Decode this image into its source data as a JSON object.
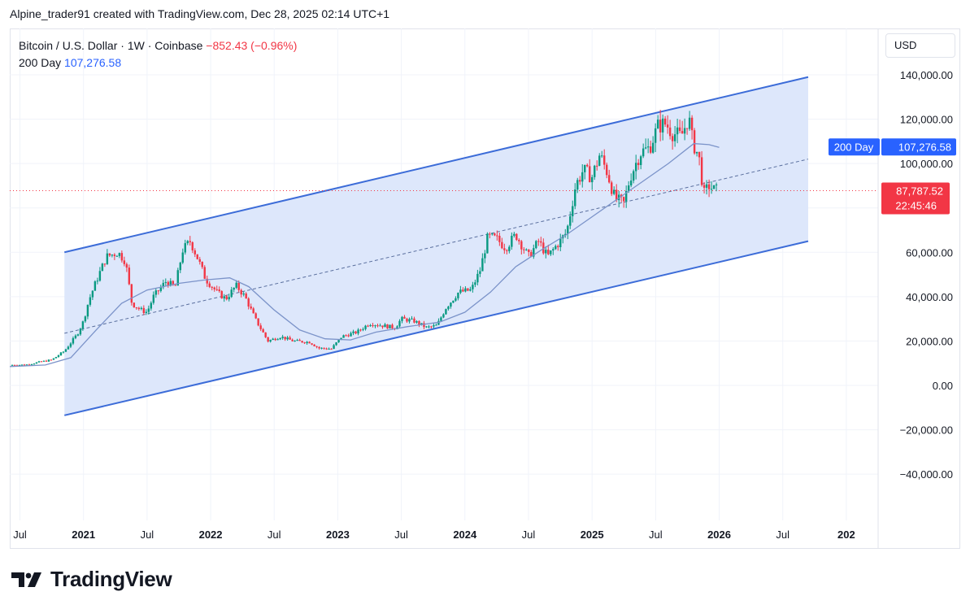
{
  "header": {
    "caption": "Alpine_trader91 created with TradingView.com, Dec 28, 2025 02:14 UTC+1"
  },
  "legend": {
    "symbol": "Bitcoin / U.S. Dollar · 1W · Coinbase",
    "change": "−852.43 (−0.96%)",
    "ma_label": "200 Day",
    "ma_value": "107,276.58"
  },
  "currency_button": "USD",
  "price_tags": {
    "ma_name": "200 Day",
    "ma_value": "107,276.58",
    "last_price": "87,787.52",
    "countdown": "22:45:46"
  },
  "footer": {
    "brand": "TradingView"
  },
  "colors": {
    "up": "#089981",
    "down": "#f23645",
    "ma": "#7b93c9",
    "channel": "#3c6cd8",
    "channel_fill": "#dbe6fb",
    "tag_blue": "#2962ff",
    "tag_red": "#f23645"
  },
  "chart_data": {
    "type": "candlestick",
    "title": "Bitcoin / U.S. Dollar · 1W · Coinbase",
    "x_ticks": [
      "Jul",
      "2021",
      "Jul",
      "2022",
      "Jul",
      "2023",
      "Jul",
      "2024",
      "Jul",
      "2025",
      "Jul",
      "2026",
      "Jul",
      "202"
    ],
    "x_tick_years": [
      2020.5,
      2021.0,
      2021.5,
      2022.0,
      2022.5,
      2023.0,
      2023.5,
      2024.0,
      2024.5,
      2025.0,
      2025.5,
      2026.0,
      2026.5,
      2027.0
    ],
    "x_range": [
      2020.42,
      2027.25
    ],
    "y_ticks": [
      140000,
      120000,
      100000,
      60000,
      40000,
      20000,
      0,
      -20000,
      -40000
    ],
    "y_tick_labels": [
      "140,000.00",
      "120,000.00",
      "100,000.00",
      "60,000.00",
      "40,000.00",
      "20,000.00",
      "0.00",
      "−20,000.00",
      "−40,000.00"
    ],
    "y_range": [
      -60000,
      160000
    ],
    "last_price": 87787.52,
    "price_path": [
      [
        2020.42,
        9200
      ],
      [
        2020.55,
        9300
      ],
      [
        2020.65,
        10500
      ],
      [
        2020.75,
        11500
      ],
      [
        2020.85,
        15500
      ],
      [
        2020.95,
        23000
      ],
      [
        2021.0,
        29000
      ],
      [
        2021.04,
        38000
      ],
      [
        2021.1,
        47000
      ],
      [
        2021.18,
        58000
      ],
      [
        2021.27,
        60000
      ],
      [
        2021.33,
        56000
      ],
      [
        2021.38,
        37000
      ],
      [
        2021.45,
        34000
      ],
      [
        2021.5,
        33000
      ],
      [
        2021.55,
        40000
      ],
      [
        2021.65,
        47000
      ],
      [
        2021.72,
        44000
      ],
      [
        2021.78,
        61000
      ],
      [
        2021.84,
        65000
      ],
      [
        2021.9,
        57000
      ],
      [
        2021.96,
        48000
      ],
      [
        2022.05,
        42000
      ],
      [
        2022.12,
        39000
      ],
      [
        2022.2,
        45000
      ],
      [
        2022.27,
        40000
      ],
      [
        2022.35,
        30000
      ],
      [
        2022.45,
        20000
      ],
      [
        2022.55,
        22000
      ],
      [
        2022.65,
        20000
      ],
      [
        2022.78,
        19500
      ],
      [
        2022.85,
        16800
      ],
      [
        2022.95,
        16500
      ],
      [
        2023.03,
        22000
      ],
      [
        2023.15,
        24000
      ],
      [
        2023.25,
        28000
      ],
      [
        2023.35,
        27000
      ],
      [
        2023.45,
        26000
      ],
      [
        2023.5,
        30000
      ],
      [
        2023.6,
        29000
      ],
      [
        2023.7,
        26000
      ],
      [
        2023.78,
        27000
      ],
      [
        2023.85,
        35000
      ],
      [
        2023.95,
        42000
      ],
      [
        2024.05,
        43000
      ],
      [
        2024.12,
        52000
      ],
      [
        2024.18,
        67000
      ],
      [
        2024.25,
        66000
      ],
      [
        2024.32,
        62000
      ],
      [
        2024.4,
        68000
      ],
      [
        2024.5,
        58000
      ],
      [
        2024.58,
        65000
      ],
      [
        2024.65,
        58000
      ],
      [
        2024.72,
        63000
      ],
      [
        2024.8,
        69000
      ],
      [
        2024.87,
        90000
      ],
      [
        2024.93,
        97000
      ],
      [
        2025.0,
        94000
      ],
      [
        2025.06,
        104000
      ],
      [
        2025.12,
        96000
      ],
      [
        2025.18,
        84000
      ],
      [
        2025.25,
        82000
      ],
      [
        2025.3,
        94000
      ],
      [
        2025.38,
        105000
      ],
      [
        2025.45,
        107000
      ],
      [
        2025.52,
        117000
      ],
      [
        2025.58,
        118000
      ],
      [
        2025.63,
        114000
      ],
      [
        2025.7,
        112000
      ],
      [
        2025.76,
        121000
      ],
      [
        2025.79,
        110000
      ],
      [
        2025.84,
        103000
      ],
      [
        2025.88,
        86000
      ],
      [
        2025.92,
        90000
      ],
      [
        2025.96,
        88000
      ],
      [
        2025.99,
        87787
      ]
    ],
    "series": [
      {
        "name": "200 Day",
        "type": "line",
        "points": [
          [
            2020.42,
            8500
          ],
          [
            2020.7,
            9200
          ],
          [
            2020.9,
            12500
          ],
          [
            2021.1,
            25000
          ],
          [
            2021.3,
            37000
          ],
          [
            2021.5,
            43000
          ],
          [
            2021.75,
            46000
          ],
          [
            2021.95,
            47500
          ],
          [
            2022.15,
            48500
          ],
          [
            2022.3,
            44500
          ],
          [
            2022.5,
            34000
          ],
          [
            2022.7,
            25000
          ],
          [
            2022.9,
            21000
          ],
          [
            2023.1,
            20500
          ],
          [
            2023.3,
            24000
          ],
          [
            2023.55,
            26500
          ],
          [
            2023.8,
            28500
          ],
          [
            2024.0,
            33000
          ],
          [
            2024.2,
            42000
          ],
          [
            2024.4,
            53500
          ],
          [
            2024.6,
            61000
          ],
          [
            2024.8,
            68000
          ],
          [
            2025.0,
            76000
          ],
          [
            2025.2,
            84000
          ],
          [
            2025.4,
            92000
          ],
          [
            2025.6,
            100000
          ],
          [
            2025.8,
            109000
          ],
          [
            2025.92,
            108500
          ],
          [
            2026.0,
            107276.58
          ]
        ]
      }
    ],
    "parallel_channel": {
      "start_year": 2020.85,
      "end_year": 2026.7,
      "upper": [
        60000,
        139000
      ],
      "middle": [
        23500,
        102000
      ],
      "lower": [
        -13500,
        65000
      ]
    }
  }
}
